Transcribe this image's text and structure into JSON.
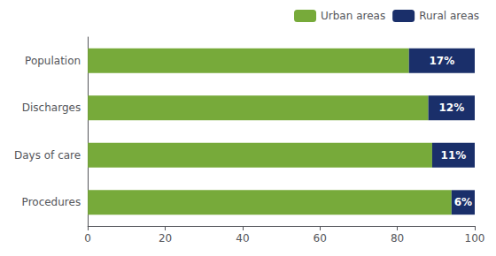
{
  "chart_data": {
    "type": "bar",
    "orientation": "horizontal",
    "stacked": true,
    "categories": [
      "Population",
      "Discharges",
      "Days of care",
      "Procedures"
    ],
    "series": [
      {
        "name": "Urban areas",
        "color": "#77aa3a",
        "values": [
          83,
          88,
          89,
          94
        ]
      },
      {
        "name": "Rural areas",
        "color": "#1a2f6a",
        "values": [
          17,
          12,
          11,
          6
        ],
        "value_labels": [
          "17%",
          "12%",
          "11%",
          "6%"
        ]
      }
    ],
    "xlim": [
      0,
      100
    ],
    "xticks": [
      0,
      20,
      40,
      60,
      80,
      100
    ],
    "data_labels": true,
    "grid": false,
    "legend": "upper right"
  }
}
